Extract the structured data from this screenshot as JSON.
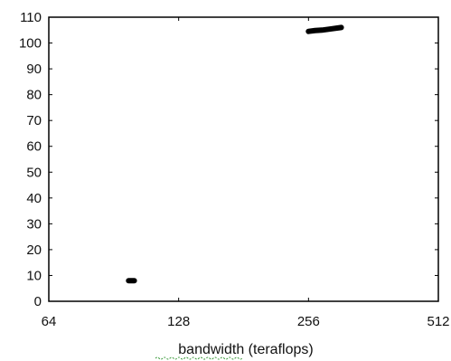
{
  "chart_data": {
    "type": "line",
    "xlabel": "bandwidth (teraflops)",
    "ylabel": "",
    "xscale": "log2",
    "xlim": [
      64,
      512
    ],
    "ylim": [
      0,
      110
    ],
    "x_ticks": [
      64,
      128,
      256,
      512
    ],
    "y_ticks": [
      0,
      10,
      20,
      30,
      40,
      50,
      60,
      70,
      80,
      90,
      100,
      110
    ],
    "grid": false,
    "legend": "none",
    "series": [
      {
        "values": [
          [
            98,
            8
          ],
          [
            101,
            8
          ]
        ],
        "color": "#000000"
      },
      {
        "values": [
          [
            256,
            104.5
          ],
          [
            265,
            104.8
          ],
          [
            275,
            105
          ],
          [
            290,
            105.5
          ],
          [
            305,
            106
          ]
        ],
        "color": "#000000"
      }
    ]
  }
}
